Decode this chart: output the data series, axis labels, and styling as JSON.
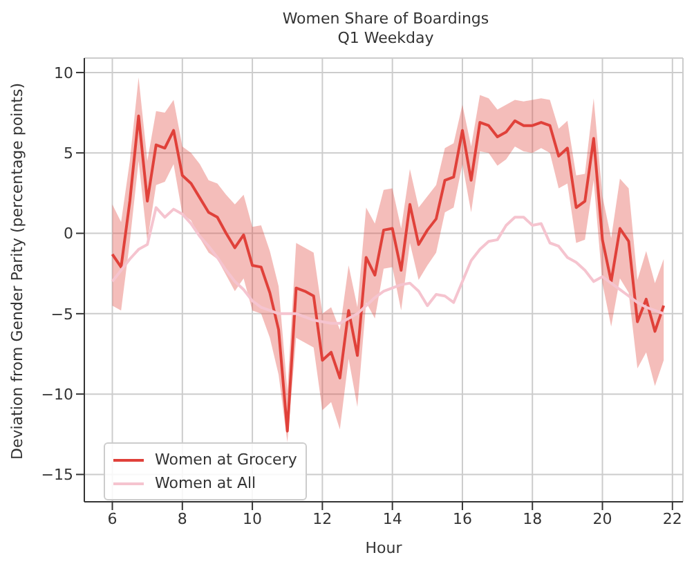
{
  "chart_data": {
    "type": "line",
    "title": "Women Share of Boardings",
    "subtitle": "Q1 Weekday",
    "xlabel": "Hour",
    "ylabel": "Deviation from Gender Parity (percentage points)",
    "x": [
      6,
      6.25,
      6.5,
      6.75,
      7,
      7.25,
      7.5,
      7.75,
      8,
      8.25,
      8.5,
      8.75,
      9,
      9.25,
      9.5,
      9.75,
      10,
      10.25,
      10.5,
      10.75,
      11,
      11.25,
      11.5,
      11.75,
      12,
      12.25,
      12.5,
      12.75,
      13,
      13.25,
      13.5,
      13.75,
      14,
      14.25,
      14.5,
      14.75,
      15,
      15.25,
      15.5,
      15.75,
      16,
      16.25,
      16.5,
      16.75,
      17,
      17.25,
      17.5,
      17.75,
      18,
      18.25,
      18.5,
      18.75,
      19,
      19.25,
      19.5,
      19.75,
      20,
      20.25,
      20.5,
      20.75,
      21,
      21.25,
      21.5,
      21.75
    ],
    "series": [
      {
        "name": "Women at Grocery",
        "color": "#e0413a",
        "values": [
          -1.3,
          -2.1,
          2.0,
          7.3,
          2.0,
          5.5,
          5.3,
          6.4,
          3.6,
          3.1,
          2.2,
          1.3,
          1.0,
          0,
          -0.9,
          -0.1,
          -2.0,
          -2.1,
          -3.7,
          -6.0,
          -12.3,
          -3.4,
          -3.6,
          -3.9,
          -7.9,
          -7.4,
          -9.0,
          -4.8,
          -7.6,
          -1.5,
          -2.6,
          0.2,
          0.3,
          -2.3,
          1.8,
          -0.7,
          0.2,
          0.9,
          3.3,
          3.5,
          6.4,
          3.3,
          6.9,
          6.7,
          6.0,
          6.3,
          7.0,
          6.7,
          6.7,
          6.9,
          6.7,
          4.8,
          5.3,
          1.6,
          2.0,
          5.9,
          -0.4,
          -3.0,
          0.3,
          -0.5,
          -5.5,
          -4.1,
          -6.1,
          -4.5
        ],
        "lower": [
          -4.5,
          -4.8,
          -0.5,
          4.5,
          -0.5,
          3.0,
          3.2,
          4.3,
          1.2,
          0.8,
          -0.3,
          -1.2,
          -1.6,
          -2.6,
          -3.6,
          -2.8,
          -4.8,
          -5.0,
          -6.5,
          -8.8,
          -13.0,
          -6.5,
          -6.8,
          -7.1,
          -11.0,
          -10.5,
          -12.2,
          -7.8,
          -10.8,
          -4.3,
          -5.3,
          -2.2,
          -2.1,
          -4.8,
          -0.6,
          -2.9,
          -2.0,
          -1.2,
          1.3,
          1.6,
          4.3,
          1.3,
          5.1,
          5.0,
          4.2,
          4.6,
          5.4,
          5.1,
          5.0,
          5.3,
          5.0,
          2.8,
          3.1,
          -0.6,
          -0.4,
          3.3,
          -3.1,
          -5.8,
          -2.8,
          -3.7,
          -8.4,
          -7.4,
          -9.5,
          -7.9
        ],
        "upper": [
          1.8,
          0.7,
          4.5,
          9.7,
          4.5,
          7.6,
          7.5,
          8.3,
          5.4,
          5.0,
          4.3,
          3.3,
          3.1,
          2.4,
          1.8,
          2.4,
          0.4,
          0.5,
          -1.1,
          -3.3,
          -9.8,
          -0.6,
          -0.9,
          -1.2,
          -5.0,
          -4.6,
          -6.0,
          -2.0,
          -4.6,
          1.6,
          0.6,
          2.7,
          2.8,
          0.3,
          4.0,
          1.6,
          2.3,
          3.0,
          5.3,
          5.6,
          8.0,
          5.4,
          8.6,
          8.4,
          7.7,
          8.0,
          8.3,
          8.2,
          8.3,
          8.4,
          8.3,
          6.5,
          7.0,
          3.6,
          3.7,
          8.4,
          2.3,
          -0.3,
          3.4,
          2.8,
          -2.9,
          -1.1,
          -3.1,
          -1.6
        ]
      },
      {
        "name": "Women at All",
        "color": "#f5c4cf",
        "values": [
          -3.0,
          -2.3,
          -1.6,
          -1.0,
          -0.7,
          1.6,
          1.0,
          1.5,
          1.2,
          0.6,
          -0.2,
          -0.8,
          -1.5,
          -2.3,
          -3.0,
          -3.5,
          -4.2,
          -4.6,
          -4.8,
          -5.0,
          -5.0,
          -5.0,
          -5.2,
          -5.4,
          -5.5,
          -5.6,
          -5.6,
          -5.3,
          -5.0,
          -4.5,
          -4.0,
          -3.6,
          -3.4,
          -3.2,
          -3.1,
          -3.6,
          -4.5,
          -3.8,
          -3.9,
          -4.3,
          -3.0,
          -1.7,
          -1.0,
          -0.5,
          -0.4,
          0.5,
          1.0,
          1.0,
          0.5,
          0.6,
          -0.6,
          -0.8,
          -1.5,
          -1.8,
          -2.3,
          -3.0,
          -2.7,
          -3.1,
          -3.5,
          -3.9,
          -4.3,
          -4.6,
          -4.8,
          -5.0
        ]
      }
    ],
    "xlim": [
      5.2,
      22.3
    ],
    "xticks": [
      6,
      8,
      10,
      12,
      14,
      16,
      18,
      20,
      22
    ],
    "ylim": [
      -16.7,
      10.9
    ],
    "yticks": [
      -15,
      -10,
      -5,
      0,
      5,
      10
    ],
    "grid": true,
    "legend": "bottom left",
    "marker": "none",
    "line_style": "solid"
  }
}
